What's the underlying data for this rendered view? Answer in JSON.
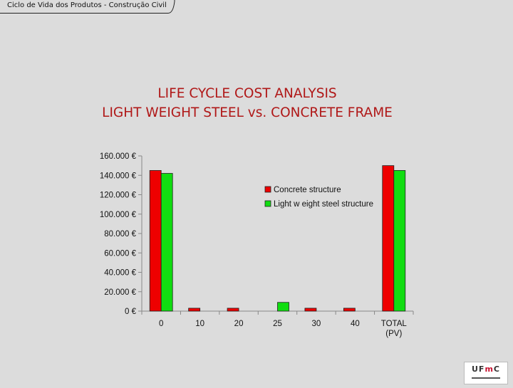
{
  "header": {
    "text": "Ciclo de Vida dos Produtos - Construção Civil"
  },
  "slide": {
    "title_line1": "LIFE CYCLE COST ANALYSIS",
    "title_line2": "LIGHT WEIGHT STEEL vs. CONCRETE FRAME"
  },
  "logo": {
    "prefix": "UF",
    "accent": "m",
    "suffix": "C"
  },
  "colors": {
    "concrete": "#ee0000",
    "steel": "#11dd11",
    "accent_title": "#b01818"
  },
  "chart_data": {
    "type": "bar",
    "title": "",
    "xlabel": "",
    "ylabel": "",
    "categories": [
      "0",
      "10",
      "20",
      "25",
      "30",
      "40",
      "TOTAL\n(PV)"
    ],
    "series": [
      {
        "name": "Concrete structure",
        "color": "#ee0000",
        "values": [
          145000,
          3000,
          3000,
          null,
          3000,
          3000,
          150000
        ]
      },
      {
        "name": "Light w eight steel structure",
        "color": "#11dd11",
        "values": [
          142000,
          null,
          null,
          9000,
          null,
          null,
          145000
        ]
      }
    ],
    "ylim": [
      0,
      160000
    ],
    "yticks": [
      0,
      20000,
      40000,
      60000,
      80000,
      100000,
      120000,
      140000,
      160000
    ],
    "ytick_labels": [
      "0 €",
      "20.000 €",
      "40.000 €",
      "60.000 €",
      "80.000 €",
      "100.000 €",
      "120.000 €",
      "140.000 €",
      "160.000 €"
    ],
    "grid": false,
    "legend_position": "top-center"
  }
}
